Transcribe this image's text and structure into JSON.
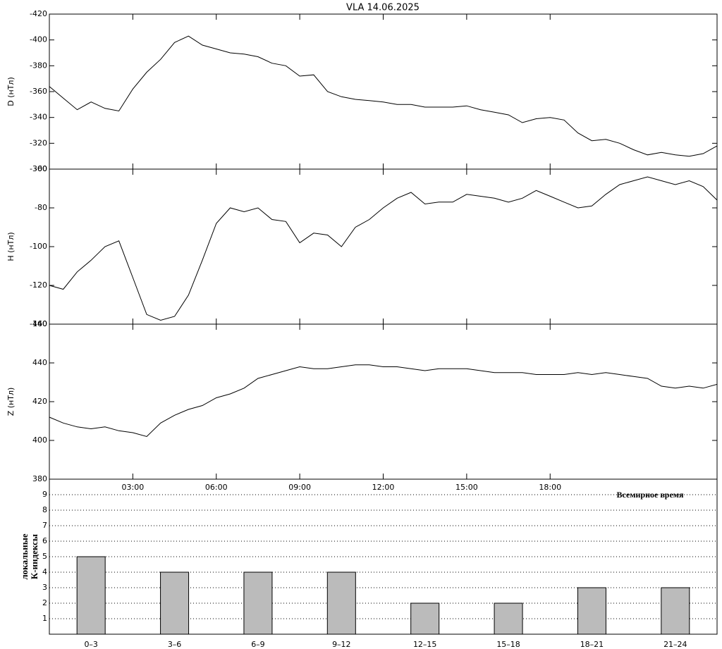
{
  "chart_data": [
    {
      "type": "line",
      "title": "VLA   14.06.2025",
      "ylabel": "D (нТл)",
      "color": "#000000",
      "xlim": [
        0,
        24
      ],
      "ylim": [
        -300,
        -420
      ],
      "yticks": [
        -300,
        -320,
        -340,
        -360,
        -380,
        -400,
        -420
      ],
      "x": [
        0,
        0.5,
        1,
        1.5,
        2,
        2.5,
        3,
        3.5,
        4,
        4.5,
        5,
        5.5,
        6,
        6.5,
        7,
        7.5,
        8,
        8.5,
        9,
        9.5,
        10,
        10.5,
        11,
        11.5,
        12,
        12.5,
        13,
        13.5,
        14,
        14.5,
        15,
        15.5,
        16,
        16.5,
        17,
        17.5,
        18,
        18.5,
        19,
        19.5,
        20,
        20.5,
        21,
        21.5,
        22,
        22.5,
        23,
        23.5,
        24
      ],
      "values": [
        -364,
        -355,
        -346,
        -352,
        -347,
        -345,
        -362,
        -375,
        -385,
        -398,
        -403,
        -396,
        -393,
        -390,
        -389,
        -387,
        -382,
        -380,
        -372,
        -373,
        -360,
        -356,
        -354,
        -353,
        -352,
        -350,
        -350,
        -348,
        -348,
        -348,
        -349,
        -346,
        -344,
        -342,
        -336,
        -339,
        -340,
        -338,
        -328,
        -322,
        -323,
        -320,
        -315,
        -311,
        -313,
        -311,
        -310,
        -312,
        -318
      ]
    },
    {
      "type": "line",
      "ylabel": "H (нТл)",
      "color": "#000000",
      "xlim": [
        0,
        24
      ],
      "ylim": [
        -140,
        -60
      ],
      "yticks": [
        -60,
        -80,
        -100,
        -120,
        -140
      ],
      "x": [
        0,
        0.5,
        1,
        1.5,
        2,
        2.5,
        3,
        3.5,
        4,
        4.5,
        5,
        5.5,
        6,
        6.5,
        7,
        7.5,
        8,
        8.5,
        9,
        9.5,
        10,
        10.5,
        11,
        11.5,
        12,
        12.5,
        13,
        13.5,
        14,
        14.5,
        15,
        15.5,
        16,
        16.5,
        17,
        17.5,
        18,
        18.5,
        19,
        19.5,
        20,
        20.5,
        21,
        21.5,
        22,
        22.5,
        23,
        23.5,
        24
      ],
      "values": [
        -120,
        -122,
        -113,
        -107,
        -100,
        -97,
        -116,
        -135,
        -138,
        -136,
        -125,
        -107,
        -88,
        -80,
        -82,
        -80,
        -86,
        -87,
        -98,
        -93,
        -94,
        -100,
        -90,
        -86,
        -80,
        -75,
        -72,
        -78,
        -77,
        -77,
        -73,
        -74,
        -75,
        -77,
        -75,
        -71,
        -74,
        -77,
        -80,
        -79,
        -73,
        -68,
        -66,
        -64,
        -66,
        -68,
        -66,
        -69,
        -76
      ]
    },
    {
      "type": "line",
      "ylabel": "Z (нТл)",
      "xlabel": "Всемирное время",
      "color": "#000000",
      "xlim": [
        0,
        24
      ],
      "ylim": [
        380,
        460
      ],
      "yticks": [
        460,
        440,
        420,
        400,
        380
      ],
      "xticks": [
        {
          "value": 3,
          "label": "03:00"
        },
        {
          "value": 6,
          "label": "06:00"
        },
        {
          "value": 9,
          "label": "09:00"
        },
        {
          "value": 12,
          "label": "12:00"
        },
        {
          "value": 15,
          "label": "15:00"
        },
        {
          "value": 18,
          "label": "18:00"
        }
      ],
      "x": [
        0,
        0.5,
        1,
        1.5,
        2,
        2.5,
        3,
        3.5,
        4,
        4.5,
        5,
        5.5,
        6,
        6.5,
        7,
        7.5,
        8,
        8.5,
        9,
        9.5,
        10,
        10.5,
        11,
        11.5,
        12,
        12.5,
        13,
        13.5,
        14,
        14.5,
        15,
        15.5,
        16,
        16.5,
        17,
        17.5,
        18,
        18.5,
        19,
        19.5,
        20,
        20.5,
        21,
        21.5,
        22,
        22.5,
        23,
        23.5,
        24
      ],
      "values": [
        412,
        409,
        407,
        406,
        407,
        405,
        404,
        402,
        409,
        413,
        416,
        418,
        422,
        424,
        427,
        432,
        434,
        436,
        438,
        437,
        437,
        438,
        439,
        439,
        438,
        438,
        437,
        436,
        437,
        437,
        437,
        436,
        435,
        435,
        435,
        434,
        434,
        434,
        435,
        434,
        435,
        434,
        433,
        432,
        428,
        427,
        428,
        427,
        429
      ]
    },
    {
      "type": "bar",
      "ylabel": [
        "локальные",
        "К-индексы"
      ],
      "color": "#bbbbbb",
      "grid": true,
      "ylim": [
        0,
        10
      ],
      "yticks": [
        1,
        2,
        3,
        4,
        5,
        6,
        7,
        8,
        9
      ],
      "categories": [
        "0–3",
        "3–6",
        "6–9",
        "9–12",
        "12–15",
        "15–18",
        "18–21",
        "21–24"
      ],
      "values": [
        5,
        4,
        4,
        4,
        2,
        2,
        3,
        3
      ]
    }
  ]
}
